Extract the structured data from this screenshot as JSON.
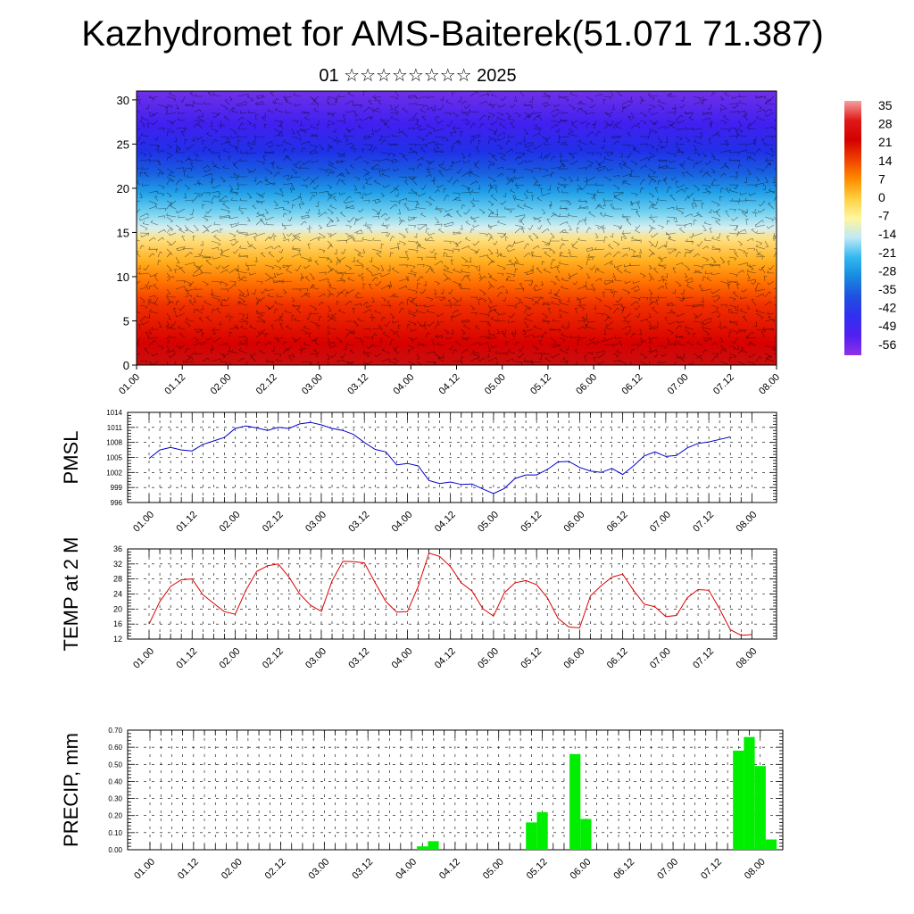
{
  "header": {
    "title": "Kazhydromet for AMS-Baiterek(51.071 71.387)",
    "subtitle": "01 ☆☆☆☆☆☆☆☆ 2025"
  },
  "chart_data": [
    {
      "type": "heatmap",
      "y_ticks": [
        "0",
        "5",
        "10",
        "15",
        "20",
        "25",
        "30"
      ],
      "y_tick_values": [
        0,
        5,
        10,
        15,
        20,
        25,
        30
      ],
      "ylim": [
        0,
        31
      ],
      "x_ticks": [
        "01.00",
        "01.12",
        "02.00",
        "02.12",
        "03.00",
        "03.12",
        "04.00",
        "04.12",
        "05.00",
        "05.12",
        "06.00",
        "06.12",
        "07.00",
        "07.12",
        "08.00"
      ],
      "colorbar": {
        "labels": [
          "35",
          "28",
          "21",
          "14",
          "7",
          "0",
          "-7",
          "-14",
          "-21",
          "-28",
          "-35",
          "-42",
          "-49",
          "-56"
        ],
        "stops": [
          "#f4a0a0",
          "#e01818",
          "#d40000",
          "#f04000",
          "#ff8c00",
          "#ffd040",
          "#fff6a0",
          "#bfe8f6",
          "#30b8f0",
          "#1888e0",
          "#2050e0",
          "#3030f0",
          "#5020f0",
          "#9030e8"
        ]
      },
      "wind_barbs": true
    },
    {
      "type": "line",
      "ylabel": "PMSL",
      "y_ticks": [
        "996",
        "999",
        "1002",
        "1005",
        "1008",
        "1011",
        "1014"
      ],
      "ylim": [
        996,
        1014
      ],
      "x_ticks": [
        "01.00",
        "01.12",
        "02.00",
        "02.12",
        "03.00",
        "03.12",
        "04.00",
        "04.12",
        "05.00",
        "05.12",
        "06.00",
        "06.12",
        "07.00",
        "07.12",
        "08.00"
      ],
      "color": "#0000cc",
      "values": [
        1004.8,
        1006.5,
        1007.0,
        1006.5,
        1006.3,
        1007.6,
        1008.3,
        1009.0,
        1010.8,
        1011.3,
        1010.9,
        1010.4,
        1011.0,
        1010.8,
        1011.7,
        1012.0,
        1011.5,
        1010.8,
        1010.4,
        1009.6,
        1008.0,
        1006.6,
        1006.1,
        1003.5,
        1003.8,
        1003.3,
        1000.4,
        999.8,
        1000.1,
        999.6,
        999.7,
        998.7,
        997.8,
        998.8,
        1000.8,
        1001.5,
        1001.5,
        1002.6,
        1004.1,
        1004.2,
        1003.0,
        1002.3,
        1002.0,
        1002.8,
        1001.6,
        1003.3,
        1005.3,
        1006.1,
        1005.2,
        1005.4,
        1006.9,
        1007.8,
        1008.1,
        1008.6,
        1009.1
      ],
      "x_start": 0.0,
      "x_step": 3
    },
    {
      "type": "line",
      "ylabel": "TEMP at 2 M",
      "y_ticks": [
        "12",
        "16",
        "20",
        "24",
        "28",
        "32",
        "36"
      ],
      "ylim": [
        12,
        36
      ],
      "x_ticks": [
        "01.00",
        "01.12",
        "02.00",
        "02.12",
        "03.00",
        "03.12",
        "04.00",
        "04.12",
        "05.00",
        "05.12",
        "06.00",
        "06.12",
        "07.00",
        "07.12",
        "08.00"
      ],
      "color": "#dd0000",
      "values": [
        16.0,
        22.0,
        26.0,
        27.8,
        28.0,
        23.8,
        21.5,
        19.3,
        18.6,
        25.0,
        30.0,
        31.5,
        32.0,
        28.5,
        24.0,
        21.0,
        19.4,
        27.5,
        32.7,
        32.6,
        32.3,
        27.0,
        22.0,
        19.2,
        19.3,
        26.0,
        34.9,
        34.0,
        31.3,
        27.0,
        24.8,
        20.1,
        18.1,
        24.3,
        27.0,
        27.6,
        26.5,
        23.0,
        17.5,
        15.2,
        15.0,
        23.5,
        26.2,
        28.5,
        29.3,
        25.0,
        21.3,
        20.6,
        18.0,
        18.3,
        23.0,
        25.2,
        25.0,
        20.0,
        14.5,
        13.0,
        13.2
      ],
      "x_start": 0.0,
      "x_step": 3
    },
    {
      "type": "bar",
      "ylabel": "PRECIP, mm",
      "y_ticks": [
        "0.00",
        "0.10",
        "0.20",
        "0.30",
        "0.40",
        "0.50",
        "0.60",
        "0.70"
      ],
      "ylim": [
        0,
        0.7
      ],
      "x_ticks": [
        "01.00",
        "01.12",
        "02.00",
        "02.12",
        "03.00",
        "03.12",
        "04.00",
        "04.12",
        "05.00",
        "05.12",
        "06.00",
        "06.12",
        "07.00",
        "07.12",
        "08.00"
      ],
      "color": "#00ee00",
      "bars": [
        {
          "x": 75,
          "value": 0.02
        },
        {
          "x": 78,
          "value": 0.05
        },
        {
          "x": 105,
          "value": 0.16
        },
        {
          "x": 108,
          "value": 0.22
        },
        {
          "x": 117,
          "value": 0.56
        },
        {
          "x": 120,
          "value": 0.18
        },
        {
          "x": 162,
          "value": 0.58
        },
        {
          "x": 165,
          "value": 0.66
        },
        {
          "x": 168,
          "value": 0.49
        },
        {
          "x": 171,
          "value": 0.06
        }
      ]
    }
  ]
}
